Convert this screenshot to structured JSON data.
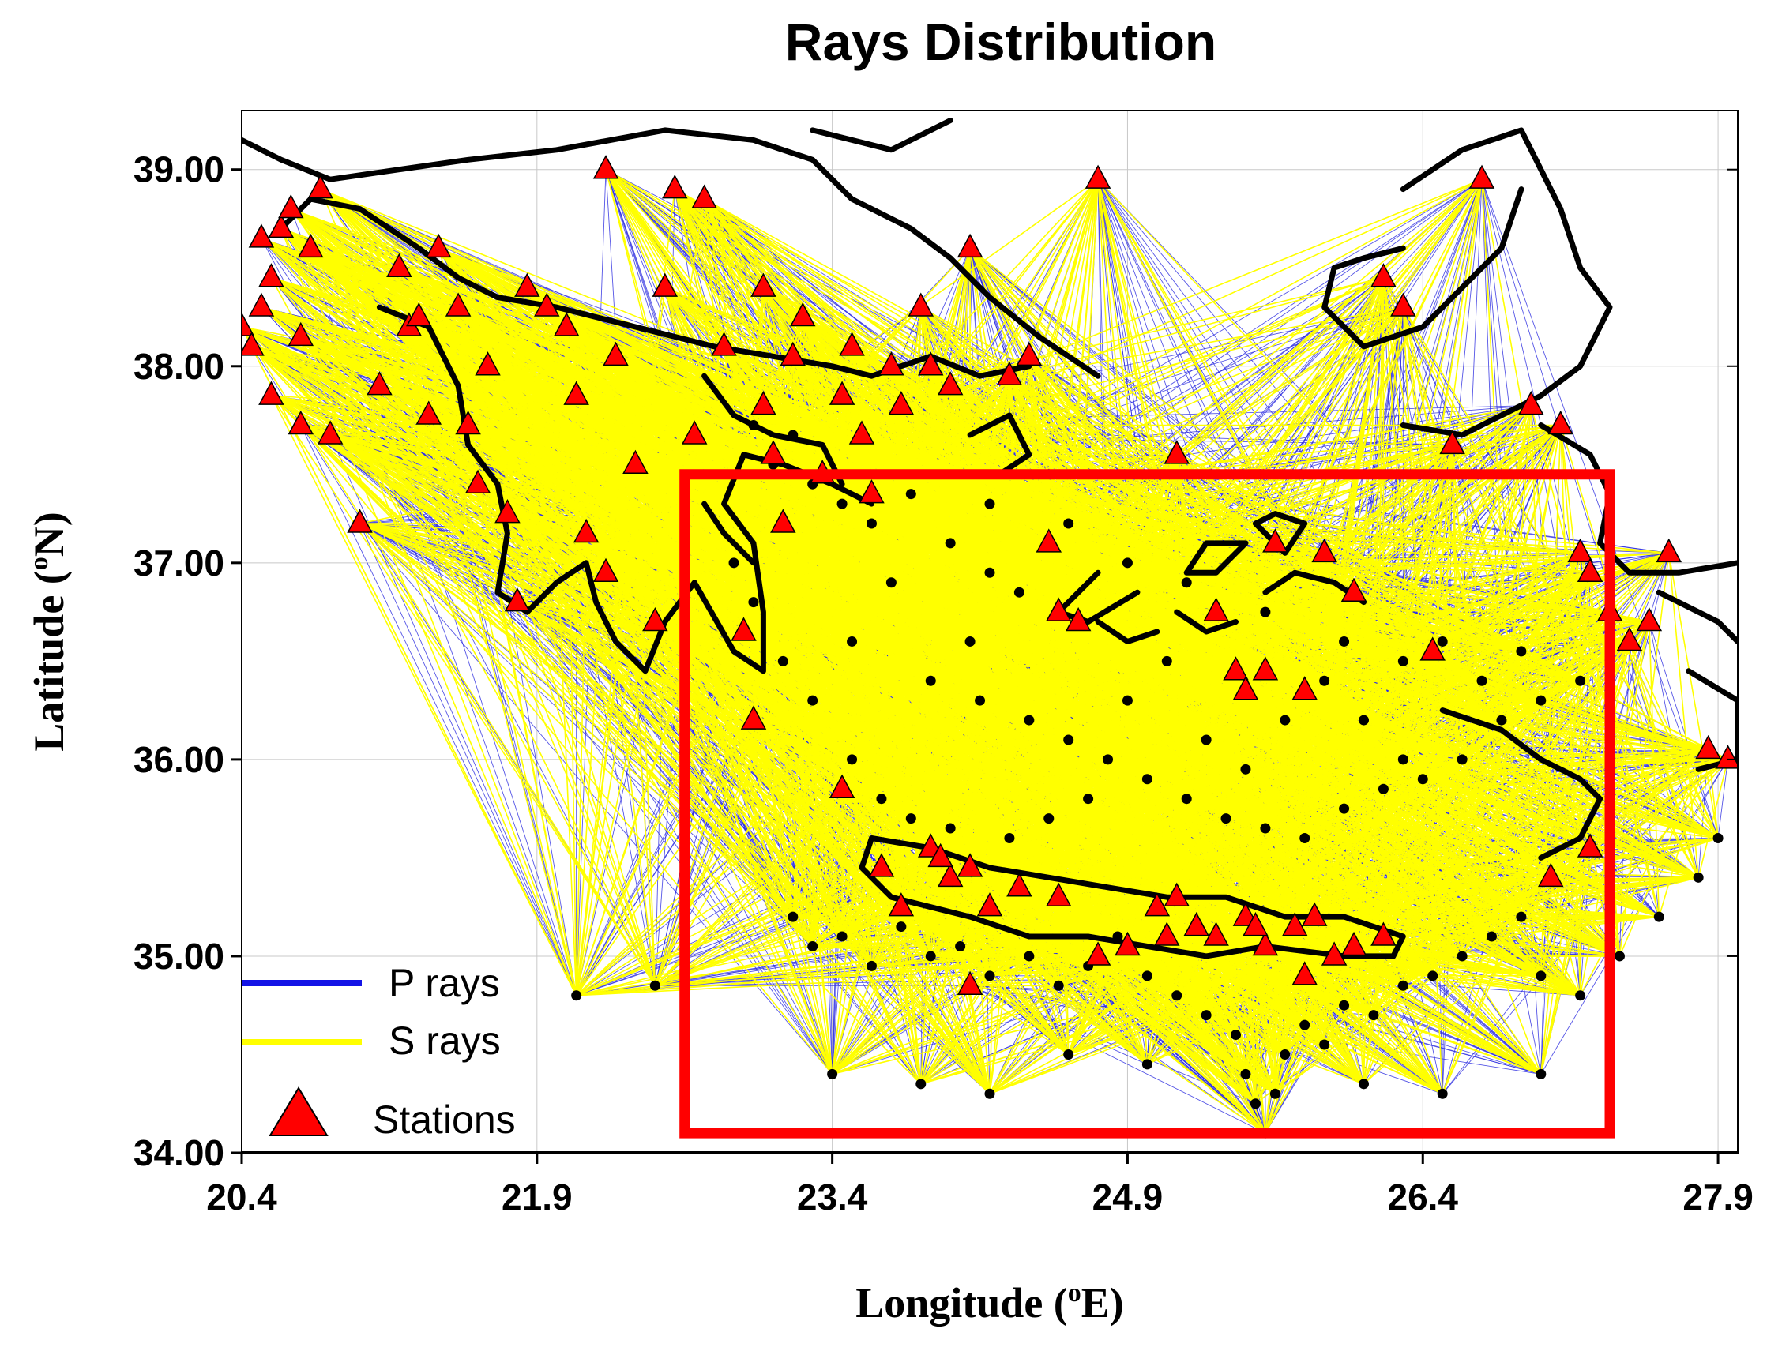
{
  "figure": {
    "title": "Rays Distribution",
    "xlabel": {
      "main": "Longitude (",
      "sup": "o",
      "unit": "E)"
    },
    "ylabel": {
      "main": "Latitude (",
      "sup": "o",
      "unit": "N)"
    }
  },
  "axes": {
    "xlim": [
      20.4,
      28.0
    ],
    "ylim": [
      34.0,
      39.3
    ],
    "xticks": [
      20.4,
      21.9,
      23.4,
      24.9,
      26.4,
      27.9
    ],
    "xtick_labels": [
      "20.4",
      "21.9",
      "23.4",
      "24.9",
      "26.4",
      "27.9"
    ],
    "yticks": [
      34.0,
      35.0,
      36.0,
      37.0,
      38.0,
      39.0
    ],
    "ytick_labels": [
      "34.00",
      "35.00",
      "36.00",
      "37.00",
      "38.00",
      "39.00"
    ]
  },
  "legend": {
    "p_rays": "P rays",
    "s_rays": "S rays",
    "stations": "Stations"
  },
  "colors": {
    "p_rays": "#2a2ae0",
    "s_rays": "#ffff00",
    "stations": "#ff0000",
    "events": "#000000",
    "coastline": "#000000",
    "study_box": "#ff0000"
  },
  "study_area": {
    "lon": [
      22.65,
      27.35
    ],
    "lat": [
      34.1,
      37.45
    ]
  },
  "coastlines": [
    [
      [
        20.6,
        38.7
      ],
      [
        20.75,
        38.85
      ],
      [
        21.0,
        38.8
      ],
      [
        21.3,
        38.6
      ],
      [
        21.5,
        38.45
      ],
      [
        21.7,
        38.35
      ],
      [
        22.0,
        38.3
      ],
      [
        22.4,
        38.2
      ],
      [
        22.8,
        38.1
      ],
      [
        23.1,
        38.05
      ],
      [
        23.4,
        38.0
      ],
      [
        23.6,
        37.95
      ],
      [
        23.9,
        38.05
      ],
      [
        24.15,
        37.95
      ],
      [
        24.4,
        38.0
      ]
    ],
    [
      [
        21.1,
        38.3
      ],
      [
        21.35,
        38.2
      ],
      [
        21.5,
        37.9
      ],
      [
        21.55,
        37.6
      ],
      [
        21.7,
        37.4
      ],
      [
        21.75,
        37.15
      ],
      [
        21.7,
        36.85
      ],
      [
        21.85,
        36.75
      ],
      [
        22.0,
        36.9
      ],
      [
        22.15,
        37.0
      ],
      [
        22.2,
        36.8
      ],
      [
        22.3,
        36.6
      ],
      [
        22.45,
        36.45
      ],
      [
        22.55,
        36.7
      ],
      [
        22.7,
        36.9
      ],
      [
        22.9,
        36.55
      ],
      [
        23.05,
        36.45
      ],
      [
        23.05,
        36.75
      ],
      [
        23.0,
        37.1
      ],
      [
        22.85,
        37.3
      ],
      [
        22.95,
        37.55
      ],
      [
        23.15,
        37.5
      ],
      [
        23.4,
        37.4
      ],
      [
        23.6,
        37.3
      ]
    ],
    [
      [
        22.75,
        37.95
      ],
      [
        22.9,
        37.75
      ],
      [
        23.1,
        37.65
      ],
      [
        23.35,
        37.6
      ],
      [
        23.45,
        37.4
      ]
    ],
    [
      [
        20.3,
        39.2
      ],
      [
        20.6,
        39.05
      ],
      [
        20.85,
        38.95
      ],
      [
        21.2,
        39.0
      ],
      [
        21.55,
        39.05
      ],
      [
        22.0,
        39.1
      ],
      [
        22.55,
        39.2
      ],
      [
        23.0,
        39.15
      ],
      [
        23.3,
        39.05
      ],
      [
        23.5,
        38.85
      ],
      [
        23.8,
        38.7
      ],
      [
        24.0,
        38.55
      ],
      [
        24.2,
        38.35
      ],
      [
        24.45,
        38.15
      ],
      [
        24.6,
        38.05
      ],
      [
        24.75,
        37.95
      ]
    ],
    [
      [
        23.3,
        39.2
      ],
      [
        23.7,
        39.1
      ],
      [
        24.0,
        39.25
      ]
    ],
    [
      [
        23.55,
        35.45
      ],
      [
        23.6,
        35.6
      ],
      [
        23.9,
        35.55
      ],
      [
        24.2,
        35.45
      ],
      [
        24.5,
        35.4
      ],
      [
        24.8,
        35.35
      ],
      [
        25.1,
        35.3
      ],
      [
        25.4,
        35.3
      ],
      [
        25.7,
        35.2
      ],
      [
        26.0,
        35.2
      ],
      [
        26.3,
        35.1
      ],
      [
        26.25,
        35.0
      ],
      [
        26.0,
        35.0
      ],
      [
        25.6,
        35.05
      ],
      [
        25.3,
        35.0
      ],
      [
        25.0,
        35.05
      ],
      [
        24.7,
        35.1
      ],
      [
        24.4,
        35.1
      ],
      [
        24.1,
        35.2
      ],
      [
        23.9,
        35.25
      ],
      [
        23.7,
        35.3
      ],
      [
        23.55,
        35.45
      ]
    ],
    [
      [
        26.9,
        38.9
      ],
      [
        26.8,
        38.6
      ],
      [
        26.6,
        38.4
      ],
      [
        26.4,
        38.2
      ],
      [
        26.1,
        38.1
      ],
      [
        25.9,
        38.3
      ],
      [
        25.95,
        38.5
      ],
      [
        26.1,
        38.55
      ],
      [
        26.3,
        38.6
      ]
    ],
    [
      [
        26.3,
        38.9
      ],
      [
        26.6,
        39.1
      ],
      [
        26.9,
        39.2
      ],
      [
        27.1,
        38.8
      ],
      [
        27.2,
        38.5
      ],
      [
        27.35,
        38.3
      ],
      [
        27.2,
        38.0
      ],
      [
        27.0,
        37.85
      ],
      [
        26.8,
        37.75
      ],
      [
        26.6,
        37.65
      ],
      [
        26.3,
        37.7
      ]
    ],
    [
      [
        27.0,
        37.7
      ],
      [
        27.25,
        37.55
      ],
      [
        27.35,
        37.35
      ],
      [
        27.3,
        37.1
      ],
      [
        27.45,
        36.95
      ],
      [
        27.7,
        36.95
      ],
      [
        28.0,
        37.0
      ]
    ],
    [
      [
        27.6,
        36.85
      ],
      [
        27.9,
        36.7
      ],
      [
        28.0,
        36.6
      ]
    ],
    [
      [
        27.75,
        36.45
      ],
      [
        28.0,
        36.3
      ],
      [
        28.0,
        36.0
      ],
      [
        27.8,
        35.95
      ]
    ],
    [
      [
        26.5,
        36.25
      ],
      [
        26.8,
        36.15
      ],
      [
        27.0,
        36.0
      ],
      [
        27.2,
        35.9
      ],
      [
        27.3,
        35.8
      ],
      [
        27.2,
        35.6
      ],
      [
        27.0,
        35.5
      ]
    ],
    [
      [
        26.1,
        36.8
      ],
      [
        25.95,
        36.9
      ],
      [
        25.75,
        36.95
      ],
      [
        25.6,
        36.85
      ]
    ],
    [
      [
        24.95,
        36.85
      ],
      [
        24.7,
        36.7
      ],
      [
        24.55,
        36.75
      ],
      [
        24.75,
        36.95
      ]
    ],
    [
      [
        25.5,
        37.1
      ],
      [
        25.3,
        37.1
      ],
      [
        25.2,
        36.95
      ],
      [
        25.35,
        36.95
      ],
      [
        25.5,
        37.1
      ]
    ],
    [
      [
        25.55,
        37.2
      ],
      [
        25.7,
        37.05
      ],
      [
        25.8,
        37.2
      ],
      [
        25.65,
        37.25
      ],
      [
        25.55,
        37.2
      ]
    ],
    [
      [
        24.75,
        36.7
      ],
      [
        24.9,
        36.6
      ],
      [
        25.05,
        36.65
      ]
    ],
    [
      [
        25.15,
        36.75
      ],
      [
        25.3,
        36.65
      ],
      [
        25.45,
        36.7
      ]
    ],
    [
      [
        24.1,
        37.65
      ],
      [
        24.3,
        37.75
      ],
      [
        24.4,
        37.55
      ],
      [
        24.25,
        37.45
      ]
    ],
    [
      [
        22.75,
        37.3
      ],
      [
        22.85,
        37.15
      ],
      [
        23.0,
        37.0
      ]
    ]
  ],
  "stations": [
    [
      20.4,
      38.2
    ],
    [
      20.45,
      38.1
    ],
    [
      20.5,
      38.3
    ],
    [
      20.55,
      38.45
    ],
    [
      20.6,
      38.7
    ],
    [
      20.65,
      38.8
    ],
    [
      20.7,
      38.15
    ],
    [
      20.75,
      38.6
    ],
    [
      20.8,
      38.9
    ],
    [
      20.55,
      37.85
    ],
    [
      20.7,
      37.7
    ],
    [
      20.85,
      37.65
    ],
    [
      21.0,
      37.2
    ],
    [
      21.1,
      37.9
    ],
    [
      21.2,
      38.5
    ],
    [
      21.25,
      38.2
    ],
    [
      21.35,
      37.75
    ],
    [
      21.4,
      38.6
    ],
    [
      21.5,
      38.3
    ],
    [
      21.55,
      37.7
    ],
    [
      21.6,
      37.4
    ],
    [
      21.65,
      38.0
    ],
    [
      21.75,
      37.25
    ],
    [
      21.8,
      36.8
    ],
    [
      21.85,
      38.4
    ],
    [
      21.95,
      38.3
    ],
    [
      22.05,
      38.2
    ],
    [
      22.1,
      37.85
    ],
    [
      22.15,
      37.15
    ],
    [
      22.25,
      36.95
    ],
    [
      22.3,
      38.05
    ],
    [
      22.4,
      37.5
    ],
    [
      22.5,
      36.7
    ],
    [
      22.55,
      38.4
    ],
    [
      22.7,
      37.65
    ],
    [
      22.75,
      38.85
    ],
    [
      22.85,
      38.1
    ],
    [
      22.95,
      36.65
    ],
    [
      23.0,
      36.2
    ],
    [
      23.05,
      38.4
    ],
    [
      23.1,
      37.55
    ],
    [
      23.15,
      37.2
    ],
    [
      23.25,
      38.25
    ],
    [
      23.35,
      37.45
    ],
    [
      23.45,
      37.85
    ],
    [
      23.5,
      38.1
    ],
    [
      23.55,
      37.65
    ],
    [
      23.6,
      37.35
    ],
    [
      23.7,
      38.0
    ],
    [
      23.75,
      37.8
    ],
    [
      23.85,
      38.3
    ],
    [
      23.9,
      38.0
    ],
    [
      24.0,
      37.9
    ],
    [
      24.1,
      38.6
    ],
    [
      24.3,
      37.95
    ],
    [
      24.4,
      38.05
    ],
    [
      24.5,
      37.1
    ],
    [
      24.55,
      36.75
    ],
    [
      24.65,
      36.7
    ],
    [
      24.75,
      38.95
    ],
    [
      25.15,
      37.55
    ],
    [
      25.35,
      36.75
    ],
    [
      25.45,
      36.45
    ],
    [
      25.5,
      36.35
    ],
    [
      25.6,
      36.45
    ],
    [
      25.65,
      37.1
    ],
    [
      25.8,
      36.35
    ],
    [
      25.9,
      37.05
    ],
    [
      26.05,
      36.85
    ],
    [
      26.2,
      38.45
    ],
    [
      26.3,
      38.3
    ],
    [
      26.45,
      36.55
    ],
    [
      26.55,
      37.6
    ],
    [
      26.7,
      38.95
    ],
    [
      26.95,
      37.8
    ],
    [
      27.1,
      37.7
    ],
    [
      27.2,
      37.05
    ],
    [
      27.25,
      36.95
    ],
    [
      27.35,
      36.75
    ],
    [
      27.45,
      36.6
    ],
    [
      27.55,
      36.7
    ],
    [
      27.65,
      37.05
    ],
    [
      27.85,
      36.05
    ],
    [
      27.95,
      36.0
    ],
    [
      23.05,
      37.8
    ],
    [
      23.2,
      38.05
    ],
    [
      22.6,
      38.9
    ],
    [
      22.25,
      39.0
    ],
    [
      21.3,
      38.25
    ],
    [
      20.5,
      38.65
    ],
    [
      23.65,
      35.45
    ],
    [
      23.75,
      35.25
    ],
    [
      23.9,
      35.55
    ],
    [
      24.0,
      35.4
    ],
    [
      24.1,
      35.45
    ],
    [
      24.2,
      35.25
    ],
    [
      24.35,
      35.35
    ],
    [
      24.55,
      35.3
    ],
    [
      24.75,
      35.0
    ],
    [
      24.9,
      35.05
    ],
    [
      25.05,
      35.25
    ],
    [
      25.15,
      35.3
    ],
    [
      25.25,
      35.15
    ],
    [
      25.35,
      35.1
    ],
    [
      25.5,
      35.2
    ],
    [
      25.6,
      35.05
    ],
    [
      25.75,
      35.15
    ],
    [
      25.85,
      35.2
    ],
    [
      25.95,
      35.0
    ],
    [
      26.05,
      35.05
    ],
    [
      26.2,
      35.1
    ],
    [
      24.1,
      34.85
    ],
    [
      25.8,
      34.9
    ],
    [
      27.05,
      35.4
    ],
    [
      27.25,
      35.55
    ],
    [
      23.45,
      35.85
    ],
    [
      23.95,
      35.5
    ],
    [
      25.1,
      35.1
    ],
    [
      25.55,
      35.15
    ]
  ],
  "events": [
    [
      23.0,
      37.7
    ],
    [
      23.1,
      37.5
    ],
    [
      23.2,
      37.65
    ],
    [
      23.3,
      37.4
    ],
    [
      23.45,
      37.3
    ],
    [
      23.6,
      37.2
    ],
    [
      23.8,
      37.35
    ],
    [
      24.0,
      37.1
    ],
    [
      24.2,
      36.95
    ],
    [
      24.35,
      36.85
    ],
    [
      24.1,
      36.6
    ],
    [
      23.9,
      36.4
    ],
    [
      24.15,
      36.3
    ],
    [
      24.4,
      36.2
    ],
    [
      24.6,
      36.1
    ],
    [
      24.8,
      36.0
    ],
    [
      25.0,
      35.9
    ],
    [
      25.2,
      35.8
    ],
    [
      25.4,
      35.7
    ],
    [
      25.6,
      35.65
    ],
    [
      25.8,
      35.6
    ],
    [
      26.0,
      35.75
    ],
    [
      26.2,
      35.85
    ],
    [
      26.4,
      35.9
    ],
    [
      26.6,
      36.0
    ],
    [
      26.8,
      36.2
    ],
    [
      27.0,
      36.3
    ],
    [
      27.2,
      36.4
    ],
    [
      26.3,
      36.5
    ],
    [
      26.5,
      36.6
    ],
    [
      26.7,
      36.4
    ],
    [
      26.9,
      36.55
    ],
    [
      23.2,
      35.2
    ],
    [
      23.3,
      35.05
    ],
    [
      23.45,
      35.1
    ],
    [
      23.6,
      34.95
    ],
    [
      23.75,
      35.15
    ],
    [
      23.9,
      35.0
    ],
    [
      24.05,
      35.05
    ],
    [
      24.2,
      34.9
    ],
    [
      24.4,
      35.0
    ],
    [
      24.55,
      34.85
    ],
    [
      24.7,
      34.95
    ],
    [
      24.85,
      35.1
    ],
    [
      25.0,
      34.9
    ],
    [
      25.15,
      34.8
    ],
    [
      25.3,
      34.7
    ],
    [
      25.45,
      34.6
    ],
    [
      25.5,
      34.4
    ],
    [
      25.55,
      34.25
    ],
    [
      25.6,
      34.1
    ],
    [
      25.65,
      34.3
    ],
    [
      25.7,
      34.5
    ],
    [
      25.8,
      34.65
    ],
    [
      25.9,
      34.55
    ],
    [
      26.0,
      34.75
    ],
    [
      26.15,
      34.7
    ],
    [
      26.3,
      34.85
    ],
    [
      26.45,
      34.9
    ],
    [
      26.6,
      35.0
    ],
    [
      26.75,
      35.1
    ],
    [
      26.9,
      35.2
    ],
    [
      27.0,
      34.9
    ],
    [
      27.2,
      34.8
    ],
    [
      27.4,
      35.0
    ],
    [
      27.6,
      35.2
    ],
    [
      27.8,
      35.4
    ],
    [
      27.9,
      35.6
    ],
    [
      22.9,
      37.0
    ],
    [
      23.0,
      36.8
    ],
    [
      23.15,
      36.5
    ],
    [
      23.3,
      36.3
    ],
    [
      23.5,
      36.0
    ],
    [
      23.65,
      35.8
    ],
    [
      23.8,
      35.7
    ],
    [
      24.0,
      35.65
    ],
    [
      24.3,
      35.6
    ],
    [
      24.5,
      35.7
    ],
    [
      24.7,
      35.8
    ],
    [
      24.9,
      36.3
    ],
    [
      25.1,
      36.5
    ],
    [
      25.3,
      36.1
    ],
    [
      25.5,
      35.95
    ],
    [
      25.7,
      36.2
    ],
    [
      25.9,
      36.4
    ],
    [
      26.1,
      36.2
    ],
    [
      26.3,
      36.0
    ],
    [
      24.2,
      37.3
    ],
    [
      24.6,
      37.2
    ],
    [
      24.9,
      37.0
    ],
    [
      25.2,
      36.9
    ],
    [
      25.6,
      36.75
    ],
    [
      26.0,
      36.6
    ],
    [
      23.7,
      36.9
    ],
    [
      23.5,
      36.6
    ],
    [
      23.4,
      34.4
    ],
    [
      23.85,
      34.35
    ],
    [
      24.2,
      34.3
    ],
    [
      24.6,
      34.5
    ],
    [
      25.0,
      34.45
    ],
    [
      26.1,
      34.35
    ],
    [
      26.5,
      34.3
    ],
    [
      27.0,
      34.4
    ],
    [
      22.1,
      34.8
    ],
    [
      22.5,
      34.85
    ]
  ]
}
